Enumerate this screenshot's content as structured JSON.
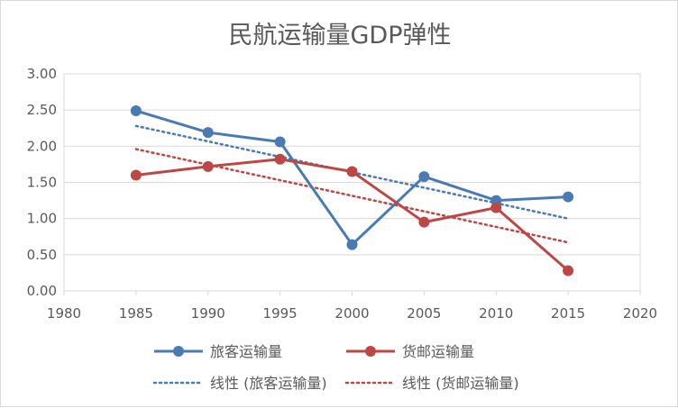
{
  "chart_data": {
    "type": "line",
    "title": "民航运输量GDP弹性",
    "xlabel": "",
    "ylabel": "",
    "x": [
      1985,
      1990,
      1995,
      2000,
      2005,
      2010,
      2015
    ],
    "xlim": [
      1980,
      2020
    ],
    "ylim": [
      0,
      3
    ],
    "x_ticks": [
      "1980",
      "1985",
      "1990",
      "1995",
      "2000",
      "2005",
      "2010",
      "2015",
      "2020"
    ],
    "y_ticks": [
      "0.00",
      "0.50",
      "1.00",
      "1.50",
      "2.00",
      "2.50",
      "3.00"
    ],
    "grid": "horizontal",
    "legend_position": "bottom",
    "series": [
      {
        "name": "旅客运输量",
        "color": "#4a7ab4",
        "values": [
          2.49,
          2.19,
          2.06,
          0.64,
          1.58,
          1.25,
          1.3
        ]
      },
      {
        "name": "货邮运输量",
        "color": "#bc4744",
        "values": [
          1.6,
          1.72,
          1.82,
          1.65,
          0.95,
          1.15,
          0.28
        ]
      }
    ],
    "trendlines": [
      {
        "name": "线性 (旅客运输量)",
        "color": "#4a7ab4",
        "style": "dotted",
        "of_series": "旅客运输量",
        "values": [
          2.28,
          1.0
        ]
      },
      {
        "name": "线性 (货邮运输量)",
        "color": "#bc4744",
        "style": "dotted",
        "of_series": "货邮运输量",
        "values": [
          1.96,
          0.67
        ]
      }
    ]
  }
}
